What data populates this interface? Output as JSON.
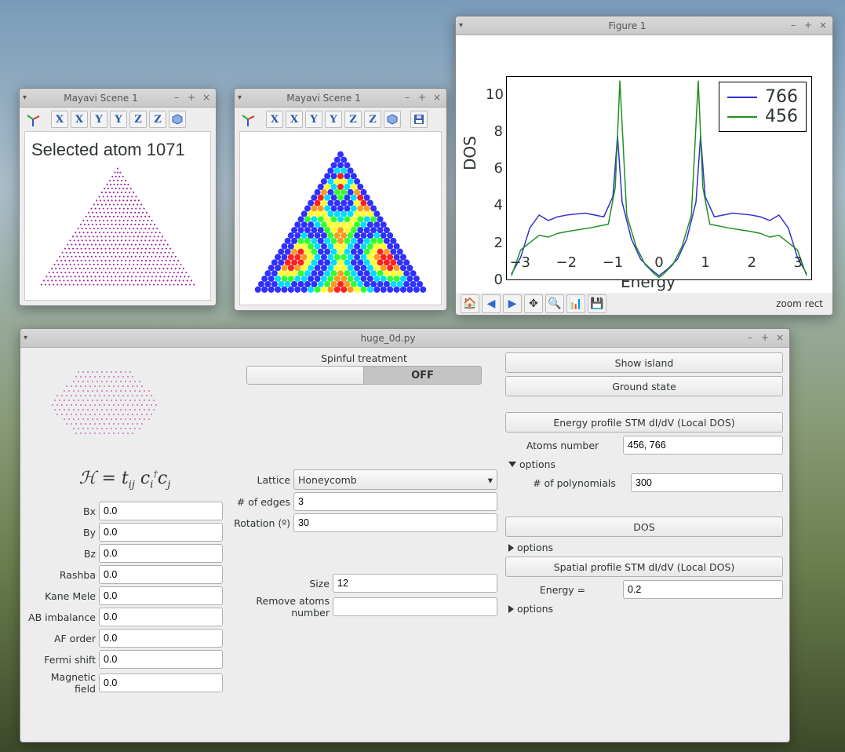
{
  "mayavi_a": {
    "title": "Mayavi Scene 1",
    "toolbar_buttons": [
      "axes",
      "X",
      "X",
      "Y",
      "Y",
      "Z",
      "Z",
      "iso"
    ],
    "overlay_text": "Selected atom 1071",
    "point_color": "#a020a0"
  },
  "mayavi_b": {
    "title": "Mayavi Scene 1",
    "toolbar_buttons": [
      "axes",
      "X",
      "X",
      "Y",
      "Y",
      "Z",
      "Z",
      "iso",
      "save"
    ],
    "colormap": [
      "#3030ff",
      "#00dcff",
      "#30ff30",
      "#ffff30",
      "#ff9a20",
      "#ff2020"
    ]
  },
  "figure": {
    "title": "Figure 1",
    "ylabel": "DOS",
    "xlabel": "Energy",
    "xlim": [
      -3.3,
      3.3
    ],
    "ylim": [
      0,
      11
    ],
    "xticks": [
      -3,
      -2,
      -1,
      0,
      1,
      2,
      3
    ],
    "yticks": [
      0,
      2,
      4,
      6,
      8,
      10
    ],
    "series": [
      {
        "label": "766",
        "color": "#3030d0",
        "x": [
          -3.2,
          -3.0,
          -2.8,
          -2.6,
          -2.4,
          -2.2,
          -2.0,
          -1.6,
          -1.2,
          -1.0,
          -0.9,
          -0.8,
          -0.6,
          -0.4,
          -0.2,
          0.0,
          0.2,
          0.4,
          0.6,
          0.8,
          0.9,
          1.0,
          1.2,
          1.6,
          2.0,
          2.2,
          2.4,
          2.6,
          2.8,
          3.0,
          3.2
        ],
        "y": [
          0.3,
          1.2,
          2.8,
          3.5,
          3.2,
          3.4,
          3.5,
          3.6,
          3.4,
          4.5,
          7.8,
          4.2,
          2.2,
          1.1,
          0.6,
          0.2,
          0.6,
          1.1,
          2.2,
          4.2,
          7.8,
          4.5,
          3.4,
          3.6,
          3.5,
          3.4,
          3.2,
          3.5,
          2.8,
          1.2,
          0.3
        ]
      },
      {
        "label": "456",
        "color": "#209020",
        "x": [
          -3.2,
          -3.0,
          -2.8,
          -2.6,
          -2.4,
          -2.2,
          -2.0,
          -1.5,
          -1.1,
          -0.95,
          -0.85,
          -0.7,
          -0.5,
          -0.3,
          -0.1,
          0.0,
          0.1,
          0.3,
          0.5,
          0.7,
          0.85,
          0.95,
          1.1,
          1.5,
          2.0,
          2.2,
          2.4,
          2.6,
          2.8,
          3.0,
          3.2
        ],
        "y": [
          0.2,
          1.6,
          2.0,
          2.4,
          2.3,
          2.5,
          2.6,
          2.8,
          3.0,
          5.0,
          10.8,
          3.5,
          1.8,
          0.8,
          0.3,
          0.1,
          0.3,
          0.8,
          1.8,
          3.5,
          10.8,
          5.0,
          3.0,
          2.8,
          2.6,
          2.5,
          2.3,
          2.4,
          2.0,
          1.6,
          0.2
        ]
      }
    ],
    "nav_buttons": [
      "home",
      "back",
      "forward",
      "pan",
      "zoom",
      "save",
      "print",
      "disk"
    ],
    "status": "zoom rect"
  },
  "main": {
    "title": "huge_0d.py",
    "spinful_label": "Spinful treatment",
    "spinful_value": "OFF",
    "formula": "ℋ = t<sub>ij</sub> c<sub>i</sub><sup>†</sup>c<sub>j</sub>",
    "left_fields": [
      {
        "label": "Bx",
        "value": "0.0"
      },
      {
        "label": "By",
        "value": "0.0"
      },
      {
        "label": "Bz",
        "value": "0.0"
      },
      {
        "label": "Rashba",
        "value": "0.0"
      },
      {
        "label": "Kane Mele",
        "value": "0.0"
      },
      {
        "label": "AB imbalance",
        "value": "0.0"
      },
      {
        "label": "AF order",
        "value": "0.0"
      },
      {
        "label": "Fermi shift",
        "value": "0.0"
      },
      {
        "label": "Magnetic field",
        "value": "0.0"
      }
    ],
    "mid": {
      "lattice_label": "Lattice",
      "lattice_value": "Honeycomb",
      "edges_label": "# of edges",
      "edges_value": "3",
      "rotation_label": "Rotation (º)",
      "rotation_value": "30",
      "size_label": "Size",
      "size_value": "12",
      "remove_label": "Remove atoms number",
      "remove_value": ""
    },
    "right": {
      "show_island": "Show island",
      "ground_state": "Ground state",
      "energy_profile": "Energy profile STM dI/dV (Local DOS)",
      "atoms_label": "Atoms number",
      "atoms_value": "456, 766",
      "options": "options",
      "poly_label": "# of polynomials",
      "poly_value": "300",
      "dos": "DOS",
      "spatial": "Spatial profile STM dI/dV (Local DOS)",
      "energy_label": "Energy =",
      "energy_value": "0.2"
    }
  }
}
